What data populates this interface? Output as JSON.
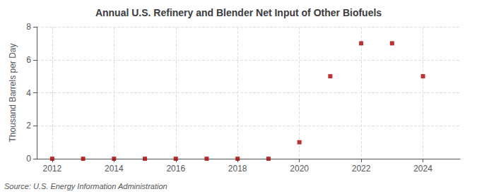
{
  "chart_data": {
    "type": "scatter",
    "title": "Annual U.S. Refinery and Blender Net Input of Other Biofuels",
    "ylabel": "Thousand Barrels per Day",
    "annotation": "Source: U.S. Energy Information Administration",
    "x": [
      2012,
      2013,
      2014,
      2015,
      2016,
      2017,
      2018,
      2019,
      2020,
      2021,
      2022,
      2023,
      2024
    ],
    "values": [
      0,
      0,
      0,
      0,
      0,
      0,
      0,
      0,
      1,
      5,
      7,
      7,
      5
    ],
    "color": "#aa0000",
    "marker": "square",
    "xlim": [
      2011.5,
      2025.2
    ],
    "xticks": [
      2012,
      2014,
      2016,
      2018,
      2020,
      2022,
      2024
    ],
    "ylim": [
      0,
      8
    ],
    "yticks": [
      0,
      2,
      4,
      6,
      8
    ],
    "grid": true
  }
}
